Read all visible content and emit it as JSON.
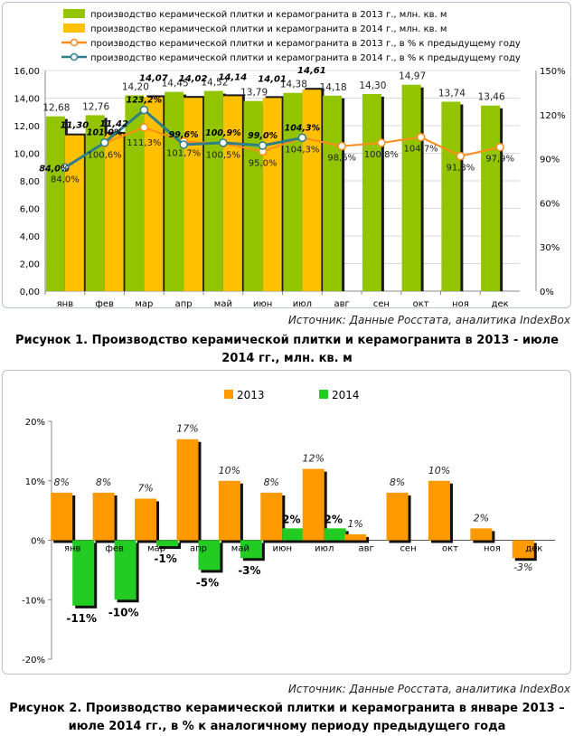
{
  "chart_data": [
    {
      "type": "bar",
      "categories": [
        "янв",
        "фев",
        "мар",
        "апр",
        "май",
        "июн",
        "июл",
        "авг",
        "сен",
        "окт",
        "ноя",
        "дек"
      ],
      "series": [
        {
          "name": "производство керамической плитки и керамогранита в 2013 г., млн. кв. м",
          "kind": "bar",
          "axis": "left",
          "color": "#92c400",
          "values": [
            12.68,
            12.76,
            14.2,
            14.45,
            14.52,
            13.79,
            14.38,
            14.18,
            14.3,
            14.97,
            13.74,
            13.46
          ],
          "labels": [
            "12,68",
            "12,76",
            "14,20",
            "14,45",
            "14,52",
            "13,79",
            "14,38",
            "14,18",
            "14,30",
            "14,97",
            "13,74",
            "13,46"
          ]
        },
        {
          "name": "производство керамической плитки и керамогранита в 2014 г., млн. кв. м",
          "kind": "bar",
          "axis": "left",
          "color": "#ffc000",
          "values": [
            11.3,
            11.42,
            14.07,
            14.02,
            14.14,
            14.01,
            14.61,
            null,
            null,
            null,
            null,
            null
          ],
          "labels": [
            "11,30",
            "11,42",
            "14,07",
            "14,02",
            "14,14",
            "14,01",
            "14,61",
            "",
            "",
            "",
            "",
            ""
          ]
        },
        {
          "name": "производство керамической плитки и керамогранита в 2013 г., в % к предыдущему году",
          "kind": "line",
          "axis": "right",
          "color": "#ff8c1a",
          "values": [
            84.0,
            100.6,
            111.3,
            101.7,
            100.5,
            95.0,
            104.3,
            98.6,
            100.8,
            104.7,
            91.8,
            97.9
          ],
          "labels": [
            "84,0%",
            "100,6%",
            "111,3%",
            "101,7%",
            "100,5%",
            "95,0%",
            "104,3%",
            "98,6%",
            "100,8%",
            "104,7%",
            "91,8%",
            "97,9%"
          ]
        },
        {
          "name": "производство керамической плитки и керамогранита в 2014 г., в % к предыдущему году",
          "kind": "line",
          "axis": "right",
          "color": "#2e7f8a",
          "values": [
            84.0,
            101.0,
            123.2,
            99.6,
            100.9,
            99.0,
            104.3,
            null,
            null,
            null,
            null,
            null
          ],
          "labels": [
            "84,0%",
            "101,0%",
            "123,2%",
            "99,6%",
            "100,9%",
            "99,0%",
            "104,3%",
            "",
            "",
            "",
            "",
            ""
          ]
        }
      ],
      "y_ticks": [
        "0,00",
        "2,00",
        "4,00",
        "6,00",
        "8,00",
        "10,00",
        "12,00",
        "14,00",
        "16,00"
      ],
      "y2_ticks": [
        "0%",
        "30%",
        "60%",
        "90%",
        "120%",
        "150%"
      ],
      "ylim": [
        0,
        16
      ],
      "y2lim": [
        0,
        150
      ],
      "grid": true,
      "legend": "top",
      "source": "Источник: Данные Росстата, аналитика IndexBox",
      "caption": "Рисунок 1. Производство керамической плитки и керамогранита в 2013 - июле 2014 гг., млн. кв. м"
    },
    {
      "type": "bar",
      "categories": [
        "янв",
        "фев",
        "мар",
        "апр",
        "май",
        "июн",
        "июл",
        "авг",
        "сен",
        "окт",
        "ноя",
        "дек"
      ],
      "series": [
        {
          "name": "2013",
          "color": "#ff9900",
          "values": [
            8,
            8,
            7,
            17,
            10,
            8,
            12,
            1,
            8,
            10,
            2,
            -3
          ],
          "labels": [
            "8%",
            "8%",
            "7%",
            "17%",
            "10%",
            "8%",
            "12%",
            "1%",
            "8%",
            "10%",
            "2%",
            "-3%"
          ]
        },
        {
          "name": "2014",
          "color": "#22cc22",
          "values": [
            -11,
            -10,
            -1,
            -5,
            -3,
            2,
            2,
            null,
            null,
            null,
            null,
            null
          ],
          "labels": [
            "-11%",
            "-10%",
            "-1%",
            "-5%",
            "-3%",
            "2%",
            "2%",
            "",
            "",
            "",
            "",
            ""
          ]
        }
      ],
      "y_ticks": [
        "-20%",
        "-10%",
        "0%",
        "10%",
        "20%"
      ],
      "ylim": [
        -20,
        20
      ],
      "grid": false,
      "legend": "top",
      "source": "Источник: Данные Росстата, аналитика IndexBox",
      "caption": "Рисунок 2. Производство керамической плитки и керамогранита в январе 2013 – июле 2014 гг., в % к аналогичному периоду предыдущего года"
    }
  ]
}
